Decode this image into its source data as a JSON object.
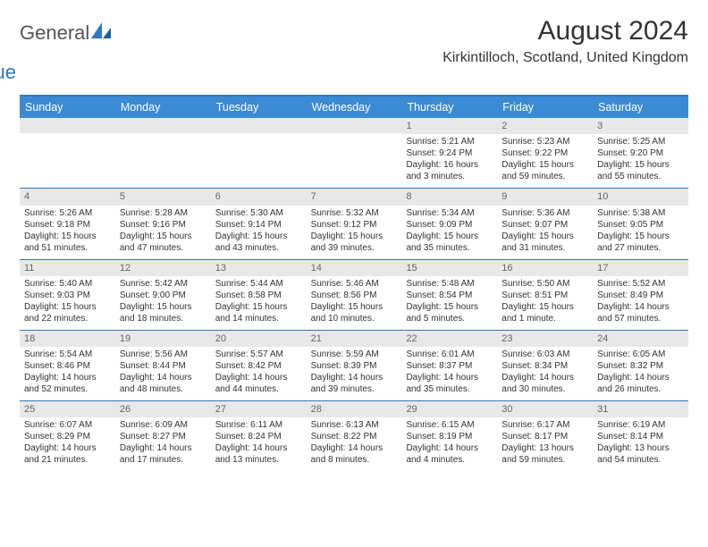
{
  "brand": {
    "general": "General",
    "blue": "Blue"
  },
  "title": "August 2024",
  "location": "Kirkintilloch, Scotland, United Kingdom",
  "colors": {
    "header_bg": "#3b8bd4",
    "border": "#2f78c2",
    "daynum_bg": "#e8e8e8",
    "text": "#333333",
    "logo_blue": "#2f78c2"
  },
  "day_names": [
    "Sunday",
    "Monday",
    "Tuesday",
    "Wednesday",
    "Thursday",
    "Friday",
    "Saturday"
  ],
  "weeks": [
    [
      null,
      null,
      null,
      null,
      {
        "n": "1",
        "sr": "Sunrise: 5:21 AM",
        "ss": "Sunset: 9:24 PM",
        "dl": "Daylight: 16 hours and 3 minutes."
      },
      {
        "n": "2",
        "sr": "Sunrise: 5:23 AM",
        "ss": "Sunset: 9:22 PM",
        "dl": "Daylight: 15 hours and 59 minutes."
      },
      {
        "n": "3",
        "sr": "Sunrise: 5:25 AM",
        "ss": "Sunset: 9:20 PM",
        "dl": "Daylight: 15 hours and 55 minutes."
      }
    ],
    [
      {
        "n": "4",
        "sr": "Sunrise: 5:26 AM",
        "ss": "Sunset: 9:18 PM",
        "dl": "Daylight: 15 hours and 51 minutes."
      },
      {
        "n": "5",
        "sr": "Sunrise: 5:28 AM",
        "ss": "Sunset: 9:16 PM",
        "dl": "Daylight: 15 hours and 47 minutes."
      },
      {
        "n": "6",
        "sr": "Sunrise: 5:30 AM",
        "ss": "Sunset: 9:14 PM",
        "dl": "Daylight: 15 hours and 43 minutes."
      },
      {
        "n": "7",
        "sr": "Sunrise: 5:32 AM",
        "ss": "Sunset: 9:12 PM",
        "dl": "Daylight: 15 hours and 39 minutes."
      },
      {
        "n": "8",
        "sr": "Sunrise: 5:34 AM",
        "ss": "Sunset: 9:09 PM",
        "dl": "Daylight: 15 hours and 35 minutes."
      },
      {
        "n": "9",
        "sr": "Sunrise: 5:36 AM",
        "ss": "Sunset: 9:07 PM",
        "dl": "Daylight: 15 hours and 31 minutes."
      },
      {
        "n": "10",
        "sr": "Sunrise: 5:38 AM",
        "ss": "Sunset: 9:05 PM",
        "dl": "Daylight: 15 hours and 27 minutes."
      }
    ],
    [
      {
        "n": "11",
        "sr": "Sunrise: 5:40 AM",
        "ss": "Sunset: 9:03 PM",
        "dl": "Daylight: 15 hours and 22 minutes."
      },
      {
        "n": "12",
        "sr": "Sunrise: 5:42 AM",
        "ss": "Sunset: 9:00 PM",
        "dl": "Daylight: 15 hours and 18 minutes."
      },
      {
        "n": "13",
        "sr": "Sunrise: 5:44 AM",
        "ss": "Sunset: 8:58 PM",
        "dl": "Daylight: 15 hours and 14 minutes."
      },
      {
        "n": "14",
        "sr": "Sunrise: 5:46 AM",
        "ss": "Sunset: 8:56 PM",
        "dl": "Daylight: 15 hours and 10 minutes."
      },
      {
        "n": "15",
        "sr": "Sunrise: 5:48 AM",
        "ss": "Sunset: 8:54 PM",
        "dl": "Daylight: 15 hours and 5 minutes."
      },
      {
        "n": "16",
        "sr": "Sunrise: 5:50 AM",
        "ss": "Sunset: 8:51 PM",
        "dl": "Daylight: 15 hours and 1 minute."
      },
      {
        "n": "17",
        "sr": "Sunrise: 5:52 AM",
        "ss": "Sunset: 8:49 PM",
        "dl": "Daylight: 14 hours and 57 minutes."
      }
    ],
    [
      {
        "n": "18",
        "sr": "Sunrise: 5:54 AM",
        "ss": "Sunset: 8:46 PM",
        "dl": "Daylight: 14 hours and 52 minutes."
      },
      {
        "n": "19",
        "sr": "Sunrise: 5:56 AM",
        "ss": "Sunset: 8:44 PM",
        "dl": "Daylight: 14 hours and 48 minutes."
      },
      {
        "n": "20",
        "sr": "Sunrise: 5:57 AM",
        "ss": "Sunset: 8:42 PM",
        "dl": "Daylight: 14 hours and 44 minutes."
      },
      {
        "n": "21",
        "sr": "Sunrise: 5:59 AM",
        "ss": "Sunset: 8:39 PM",
        "dl": "Daylight: 14 hours and 39 minutes."
      },
      {
        "n": "22",
        "sr": "Sunrise: 6:01 AM",
        "ss": "Sunset: 8:37 PM",
        "dl": "Daylight: 14 hours and 35 minutes."
      },
      {
        "n": "23",
        "sr": "Sunrise: 6:03 AM",
        "ss": "Sunset: 8:34 PM",
        "dl": "Daylight: 14 hours and 30 minutes."
      },
      {
        "n": "24",
        "sr": "Sunrise: 6:05 AM",
        "ss": "Sunset: 8:32 PM",
        "dl": "Daylight: 14 hours and 26 minutes."
      }
    ],
    [
      {
        "n": "25",
        "sr": "Sunrise: 6:07 AM",
        "ss": "Sunset: 8:29 PM",
        "dl": "Daylight: 14 hours and 21 minutes."
      },
      {
        "n": "26",
        "sr": "Sunrise: 6:09 AM",
        "ss": "Sunset: 8:27 PM",
        "dl": "Daylight: 14 hours and 17 minutes."
      },
      {
        "n": "27",
        "sr": "Sunrise: 6:11 AM",
        "ss": "Sunset: 8:24 PM",
        "dl": "Daylight: 14 hours and 13 minutes."
      },
      {
        "n": "28",
        "sr": "Sunrise: 6:13 AM",
        "ss": "Sunset: 8:22 PM",
        "dl": "Daylight: 14 hours and 8 minutes."
      },
      {
        "n": "29",
        "sr": "Sunrise: 6:15 AM",
        "ss": "Sunset: 8:19 PM",
        "dl": "Daylight: 14 hours and 4 minutes."
      },
      {
        "n": "30",
        "sr": "Sunrise: 6:17 AM",
        "ss": "Sunset: 8:17 PM",
        "dl": "Daylight: 13 hours and 59 minutes."
      },
      {
        "n": "31",
        "sr": "Sunrise: 6:19 AM",
        "ss": "Sunset: 8:14 PM",
        "dl": "Daylight: 13 hours and 54 minutes."
      }
    ]
  ]
}
